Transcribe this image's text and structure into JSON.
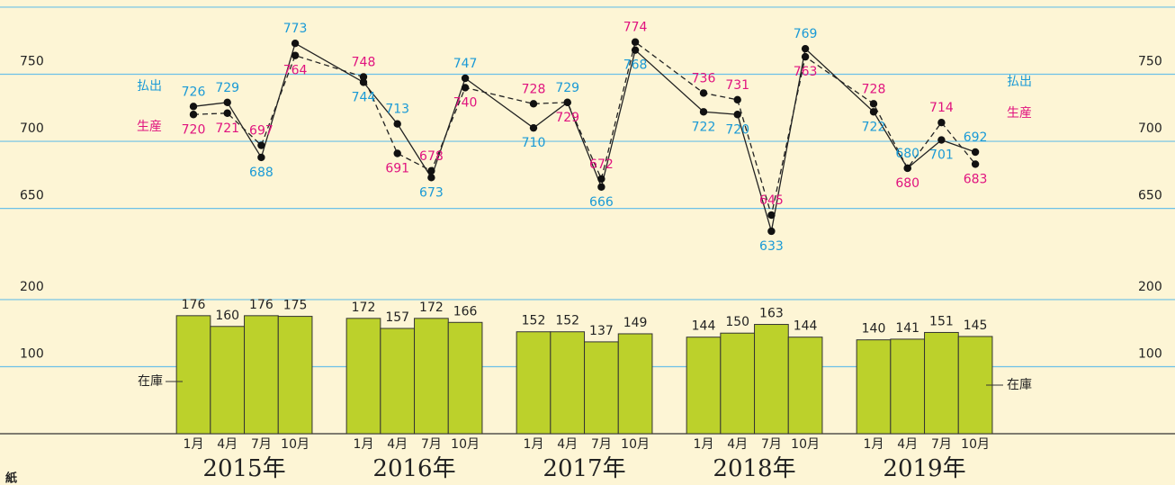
{
  "chart_data": [
    {
      "type": "line",
      "ylim": [
        635,
        805
      ],
      "yticks": [
        650,
        700,
        750,
        800
      ],
      "grid": true,
      "series": [
        {
          "name": "払出",
          "color": "#1a9ad6",
          "dash": false,
          "values": [
            726,
            729,
            688,
            773,
            744,
            713,
            673,
            747,
            710,
            729,
            666,
            768,
            722,
            720,
            633,
            769,
            722,
            680,
            701,
            692
          ]
        },
        {
          "name": "生産",
          "color": "#e0137f",
          "dash": true,
          "values": [
            720,
            721,
            697,
            764,
            748,
            691,
            678,
            740,
            728,
            729,
            672,
            774,
            736,
            731,
            645,
            763,
            728,
            680,
            714,
            683
          ]
        }
      ]
    },
    {
      "type": "bar",
      "name": "在庫",
      "color": "#bcd12b",
      "ylim": [
        0,
        210
      ],
      "yticks": [
        100,
        200
      ],
      "grid": true,
      "categories": [
        "1月",
        "4月",
        "7月",
        "10月",
        "1月",
        "4月",
        "7月",
        "10月",
        "1月",
        "4月",
        "7月",
        "10月",
        "1月",
        "4月",
        "7月",
        "10月",
        "1月",
        "4月",
        "7月",
        "10月"
      ],
      "years": [
        "2015年",
        "2016年",
        "2017年",
        "2018年",
        "2019年"
      ],
      "values": [
        176,
        160,
        176,
        175,
        172,
        157,
        172,
        166,
        152,
        152,
        137,
        149,
        144,
        150,
        163,
        144,
        140,
        141,
        151,
        145
      ]
    }
  ],
  "footer": "紙"
}
